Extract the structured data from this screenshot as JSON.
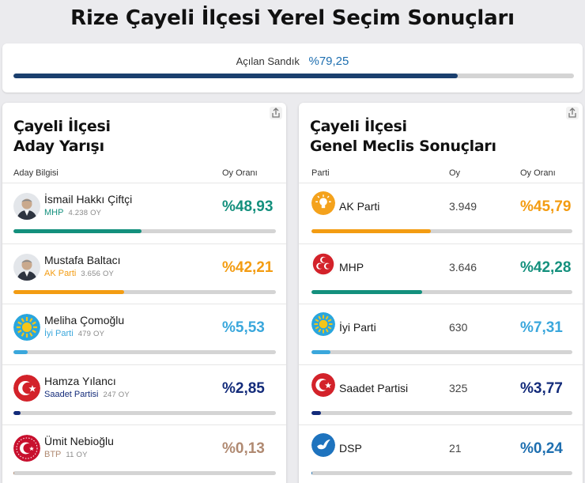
{
  "page_title": "Rize Çayeli İlçesi Yerel Seçim Sonuçları",
  "ballot": {
    "label": "Açılan Sandık",
    "value": "%79,25",
    "percent": 79.25
  },
  "left_panel": {
    "title_line1": "Çayeli İlçesi",
    "title_line2": "Aday Yarışı",
    "col_info": "Aday Bilgisi",
    "col_rate": "Oy Oranı",
    "rows": [
      {
        "name": "İsmail Hakkı Çiftçi",
        "party": "MHP",
        "votes": "4.238 OY",
        "pct": "%48,93",
        "percent": 48.93,
        "color": "#14907d",
        "party_color": "#14907d",
        "icon": "candidate-photo"
      },
      {
        "name": "Mustafa Baltacı",
        "party": "AK Parti",
        "votes": "3.656 OY",
        "pct": "%42,21",
        "percent": 42.21,
        "color": "#f39c12",
        "party_color": "#f39c12",
        "icon": "candidate-photo"
      },
      {
        "name": "Meliha Çomoğlu",
        "party": "İyi Parti",
        "votes": "479 OY",
        "pct": "%5,53",
        "percent": 5.53,
        "color": "#3aa7dc",
        "party_color": "#3aa7dc",
        "icon": "iyi-sun-icon"
      },
      {
        "name": "Hamza Yılancı",
        "party": "Saadet Partisi",
        "votes": "247 OY",
        "pct": "%2,85",
        "percent": 2.85,
        "color": "#132b7a",
        "party_color": "#132b7a",
        "icon": "saadet-crescent-icon"
      },
      {
        "name": "Ümit Nebioğlu",
        "party": "BTP",
        "votes": "11 OY",
        "pct": "%0,13",
        "percent": 0.13,
        "color": "#b08a72",
        "party_color": "#b08a72",
        "icon": "btp-crescent-icon"
      }
    ]
  },
  "right_panel": {
    "title_line1": "Çayeli İlçesi",
    "title_line2": "Genel Meclis Sonuçları",
    "col_party": "Parti",
    "col_oy": "Oy",
    "col_rate": "Oy Oranı",
    "rows": [
      {
        "name": "AK Parti",
        "oy": "3.949",
        "pct": "%45,79",
        "percent": 45.79,
        "color": "#f39c12",
        "icon": "akparti-bulb-icon"
      },
      {
        "name": "MHP",
        "oy": "3.646",
        "pct": "%42,28",
        "percent": 42.28,
        "color": "#14907d",
        "icon": "mhp-crescents-icon"
      },
      {
        "name": "İyi Parti",
        "oy": "630",
        "pct": "%7,31",
        "percent": 7.31,
        "color": "#3aa7dc",
        "icon": "iyi-sun-icon"
      },
      {
        "name": "Saadet Partisi",
        "oy": "325",
        "pct": "%3,77",
        "percent": 3.77,
        "color": "#132b7a",
        "icon": "saadet-crescent-icon"
      },
      {
        "name": "DSP",
        "oy": "21",
        "pct": "%0,24",
        "percent": 0.24,
        "color": "#1e6fb0",
        "icon": "dsp-dove-icon"
      }
    ]
  }
}
